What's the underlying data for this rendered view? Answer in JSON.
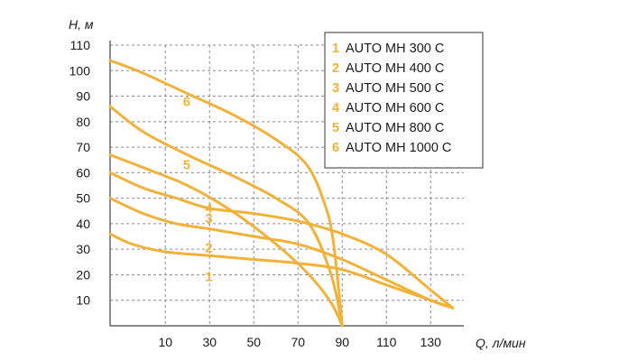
{
  "colors": {
    "curve": "#f2b23a",
    "grid": "#8c8c8c",
    "axis": "#444444"
  },
  "chart_data": {
    "type": "line",
    "xlabel": "Q, л/мин",
    "ylabel": "H, м",
    "xlim": [
      -15,
      145
    ],
    "ylim": [
      0,
      110
    ],
    "x_ticks": [
      10,
      30,
      50,
      70,
      90,
      110,
      130
    ],
    "y_ticks": [
      10,
      20,
      30,
      40,
      50,
      60,
      70,
      80,
      90,
      100,
      110
    ],
    "grid": true,
    "legend_position": "top-right",
    "series": [
      {
        "id": "1",
        "name": "AUTO MH 300 C",
        "curve_label": "1",
        "x": [
          -15,
          -5,
          10,
          30,
          50,
          70,
          90,
          110,
          130,
          140
        ],
        "y": [
          36,
          32,
          29,
          27.5,
          26,
          24.5,
          22,
          16,
          10,
          7
        ]
      },
      {
        "id": "2",
        "name": "AUTO MH 400 C",
        "curve_label": "2",
        "x": [
          -15,
          0,
          15,
          30,
          50,
          70,
          90,
          110,
          130,
          140
        ],
        "y": [
          50,
          44,
          40,
          38,
          35,
          32,
          26,
          18,
          10,
          7
        ]
      },
      {
        "id": "3",
        "name": "AUTO MH 500 C",
        "curve_label": "3",
        "x": [
          -15,
          0,
          15,
          30,
          50,
          70,
          90,
          110,
          130,
          140
        ],
        "y": [
          60,
          54,
          50,
          46,
          44,
          41,
          36,
          28,
          14,
          7
        ]
      },
      {
        "id": "4",
        "name": "AUTO MH 600 C",
        "curve_label": "4",
        "x": [
          -15,
          0,
          20,
          40,
          60,
          75,
          85,
          90
        ],
        "y": [
          67,
          62,
          55,
          45,
          32,
          20,
          9,
          0
        ]
      },
      {
        "id": "5",
        "name": "AUTO MH 800 C",
        "curve_label": "5",
        "x": [
          -15,
          0,
          20,
          40,
          60,
          75,
          85,
          90
        ],
        "y": [
          86,
          76,
          67,
          59,
          50,
          40,
          20,
          0
        ]
      },
      {
        "id": "6",
        "name": "AUTO MH 1000 C",
        "curve_label": "6",
        "x": [
          -15,
          0,
          20,
          40,
          60,
          74,
          82,
          86,
          90
        ],
        "y": [
          104,
          99,
          91,
          83,
          73,
          63,
          48,
          33,
          0
        ]
      }
    ]
  }
}
